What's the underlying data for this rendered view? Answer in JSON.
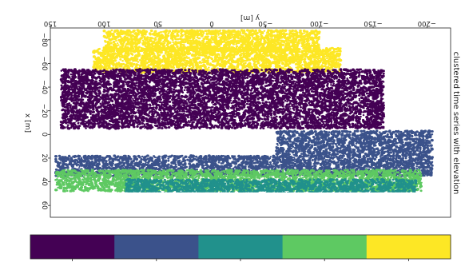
{
  "chart_data": {
    "type": "scatter",
    "title": "clustered time series with elevation",
    "xlabel": "y [m]",
    "ylabel": "x [m]",
    "x_ticks": [
      -200,
      -150,
      -100,
      -50,
      0,
      50,
      100,
      150
    ],
    "y_ticks": [
      -80,
      -60,
      -40,
      -20,
      0,
      20,
      40,
      60
    ],
    "xlim": [
      -222,
      150
    ],
    "ylim": [
      -90,
      70
    ],
    "grid": false,
    "colors": [
      "#440154",
      "#3b528b",
      "#21918c",
      "#5ec962",
      "#fde725"
    ],
    "series": [
      {
        "color": "#fde725",
        "regions": [
          {
            "x": [
              -120,
              110
            ],
            "y": [
              -73,
              -52
            ]
          },
          {
            "x": [
              -100,
              100
            ],
            "y": [
              -88,
              -70
            ]
          }
        ]
      },
      {
        "color": "#440154",
        "regions": [
          {
            "x": [
              -160,
              140
            ],
            "y": [
              -55,
              -5
            ]
          }
        ]
      },
      {
        "color": "#3b528b",
        "regions": [
          {
            "x": [
              -205,
              -60
            ],
            "y": [
              -3,
              18
            ]
          },
          {
            "x": [
              -205,
              145
            ],
            "y": [
              18,
              35
            ]
          }
        ]
      },
      {
        "color": "#5ec962",
        "regions": [
          {
            "x": [
              -195,
              145
            ],
            "y": [
              30,
              48
            ]
          }
        ]
      },
      {
        "color": "#21918c",
        "regions": [
          {
            "x": [
              -190,
              80
            ],
            "y": [
              38,
              68
            ]
          }
        ]
      }
    ]
  },
  "colorbar": {
    "colors": [
      "#440154",
      "#3b528b",
      "#21918c",
      "#5ec962",
      "#fde725"
    ]
  }
}
